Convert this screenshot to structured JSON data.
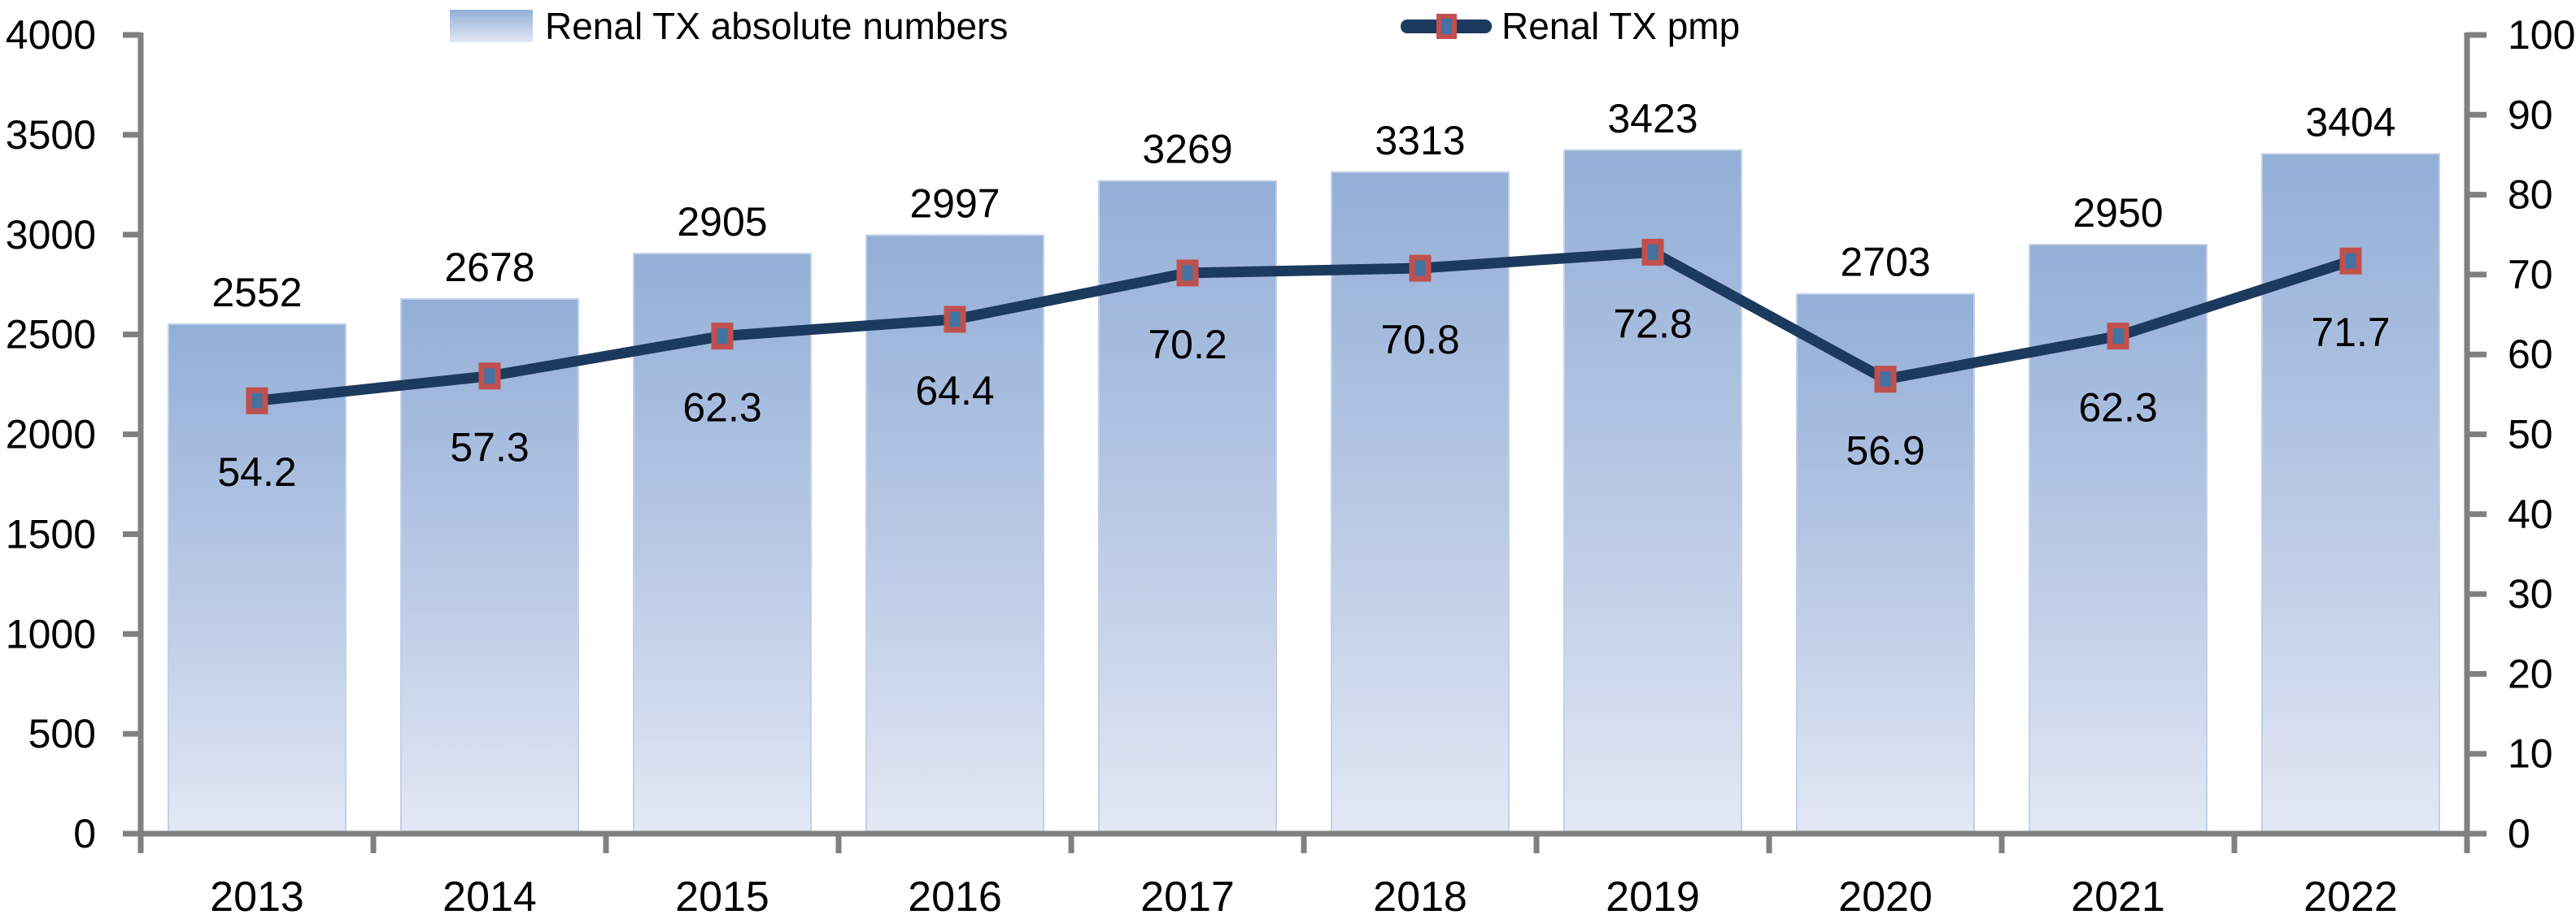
{
  "chart_data": {
    "type": "combo-bar-line",
    "title": "",
    "categories": [
      "2013",
      "2014",
      "2015",
      "2016",
      "2017",
      "2018",
      "2019",
      "2020",
      "2021",
      "2022"
    ],
    "series": [
      {
        "name": "Renal TX absolute numbers",
        "type": "bar",
        "axis": "left",
        "values": [
          2552,
          2678,
          2905,
          2997,
          3269,
          3313,
          3423,
          2703,
          2950,
          3404
        ]
      },
      {
        "name": "Renal TX pmp",
        "type": "line",
        "axis": "right",
        "values": [
          54.2,
          57.3,
          62.3,
          64.4,
          70.2,
          70.8,
          72.8,
          56.9,
          62.3,
          71.7
        ]
      }
    ],
    "left_axis": {
      "min": 0,
      "max": 4000,
      "step": 500,
      "tick_labels": [
        "0",
        "500",
        "1000",
        "1500",
        "2000",
        "2500",
        "3000",
        "3500",
        "4000"
      ]
    },
    "right_axis": {
      "min": 0,
      "max": 100,
      "step": 10,
      "tick_labels": [
        "0",
        "10",
        "20",
        "30",
        "40",
        "50",
        "60",
        "70",
        "80",
        "90",
        "100"
      ]
    },
    "legend_position": "top",
    "grid": false,
    "colors": {
      "bar_gradient_top": "#93AFD7",
      "bar_gradient_mid": "#BCCBE6",
      "bar_gradient_bottom": "#E3E8F5",
      "bar_border": "#C2D1E8",
      "line": "#1C3A5E",
      "marker_fill": "#4472A1",
      "marker_border": "#C0504D",
      "axis": "#808080",
      "label_text": "#000000"
    }
  }
}
